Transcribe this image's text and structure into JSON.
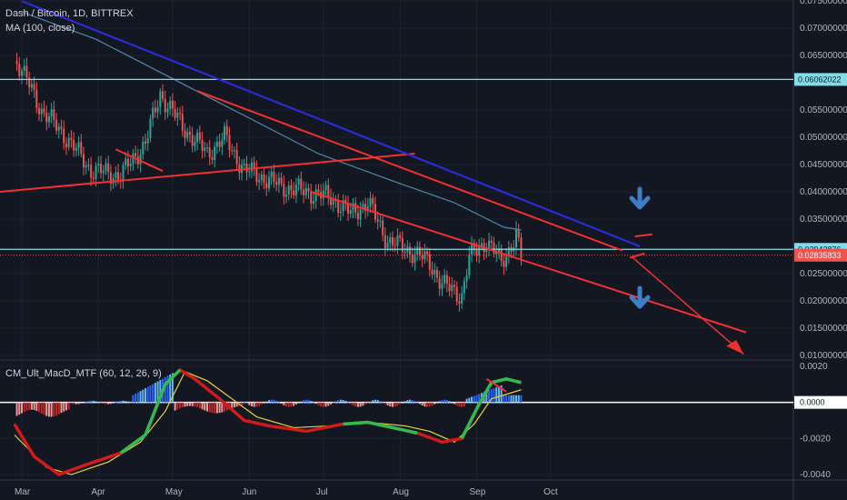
{
  "chart_data": [
    {
      "type": "candlestick",
      "title": "Dash / Bitcoin, 1D, BITTREX",
      "indicator": "MA (100, close)",
      "ylim": [
        0.0093,
        0.0752
      ],
      "y_ticks": [
        "0.07500000",
        "0.07000000",
        "0.06500000",
        "0.05500000",
        "0.05000000",
        "0.04500000",
        "0.04000000",
        "0.03500000",
        "0.02500000",
        "0.02000000",
        "0.01500000",
        "0.01000000"
      ],
      "y_tick_values": [
        0.075,
        0.07,
        0.065,
        0.055,
        0.05,
        0.045,
        0.04,
        0.035,
        0.025,
        0.02,
        0.015,
        0.01
      ],
      "x_ticks": [
        "Mar",
        "Apr",
        "May",
        "Jun",
        "Jul",
        "Aug",
        "Sep",
        "Oct"
      ],
      "x_tick_days": [
        0,
        31,
        61,
        92,
        122,
        153,
        184,
        214
      ],
      "price_tags": [
        {
          "label": "0.06062022",
          "value": 0.06062,
          "color": "#80deea",
          "text_color": "#131722"
        },
        {
          "label": "0.02943876",
          "value": 0.02944,
          "color": "#80deea",
          "text_color": "#131722"
        },
        {
          "label": "0.02835833",
          "value": 0.02836,
          "color": "#ef5350",
          "text_color": "#ffffff"
        }
      ],
      "horizontal_lines": [
        0.06062,
        0.02944
      ],
      "dotted_line": 0.02836,
      "key_prices": [
        {
          "day": -2,
          "price": 0.064
        },
        {
          "day": 8,
          "price": 0.055
        },
        {
          "day": 18,
          "price": 0.05
        },
        {
          "day": 28,
          "price": 0.044
        },
        {
          "day": 40,
          "price": 0.043
        },
        {
          "day": 50,
          "price": 0.049
        },
        {
          "day": 56,
          "price": 0.058
        },
        {
          "day": 65,
          "price": 0.052
        },
        {
          "day": 75,
          "price": 0.047
        },
        {
          "day": 82,
          "price": 0.05
        },
        {
          "day": 90,
          "price": 0.044
        },
        {
          "day": 96,
          "price": 0.043
        },
        {
          "day": 105,
          "price": 0.041
        },
        {
          "day": 115,
          "price": 0.04
        },
        {
          "day": 125,
          "price": 0.039
        },
        {
          "day": 133,
          "price": 0.036
        },
        {
          "day": 140,
          "price": 0.038
        },
        {
          "day": 148,
          "price": 0.031
        },
        {
          "day": 158,
          "price": 0.029
        },
        {
          "day": 165,
          "price": 0.027
        },
        {
          "day": 170,
          "price": 0.023
        },
        {
          "day": 178,
          "price": 0.021
        },
        {
          "day": 181,
          "price": 0.028
        },
        {
          "day": 188,
          "price": 0.031
        },
        {
          "day": 194,
          "price": 0.027
        },
        {
          "day": 200,
          "price": 0.032
        },
        {
          "day": 202,
          "price": 0.028
        }
      ],
      "ma100": [
        {
          "day": 0,
          "price": 0.073
        },
        {
          "day": 30,
          "price": 0.068
        },
        {
          "day": 60,
          "price": 0.061
        },
        {
          "day": 90,
          "price": 0.054
        },
        {
          "day": 120,
          "price": 0.047
        },
        {
          "day": 150,
          "price": 0.042
        },
        {
          "day": 175,
          "price": 0.038
        },
        {
          "day": 195,
          "price": 0.0335
        },
        {
          "day": 202,
          "price": 0.033
        }
      ]
    },
    {
      "type": "histogram+line",
      "title": "CM_Ult_MacD_MTF (60, 12, 26, 9)",
      "ylim": [
        -0.0043,
        0.0023
      ],
      "y_ticks": [
        "0.0020",
        "0.0000",
        "-0.0020",
        "-0.0040"
      ],
      "y_tick_values": [
        0.002,
        0.0,
        -0.002,
        -0.004
      ],
      "zero_label": "0.0000"
    }
  ],
  "colors": {
    "background": "#131722",
    "grid": "#1e222d",
    "axis_text": "#b2b5be",
    "up": "#26a69a",
    "down": "#ef5350",
    "ma": "#4a7fa0",
    "trend_red": "#f23030",
    "trend_blue": "#2b2bd6",
    "arrow_blue": "#3d7fc7",
    "hist_up": "#2962ff",
    "hist_up_light": "#64b5f6",
    "hist_down": "#c62828",
    "hist_down_light": "#ef9a9a",
    "macd_green": "#2ebd4f",
    "macd_red": "#d11a1a",
    "signal": "#e6d33a"
  },
  "icons": [
    "down-arrow-icon",
    "down-arrow-icon"
  ]
}
